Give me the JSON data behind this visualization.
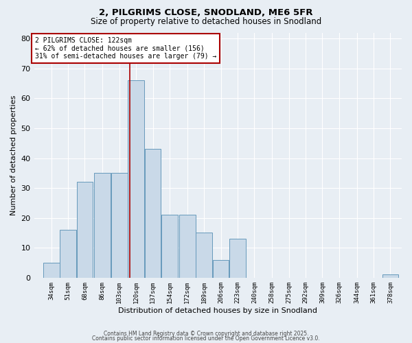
{
  "title1": "2, PILGRIMS CLOSE, SNODLAND, ME6 5FR",
  "title2": "Size of property relative to detached houses in Snodland",
  "xlabel": "Distribution of detached houses by size in Snodland",
  "ylabel": "Number of detached properties",
  "bin_labels": [
    "34sqm",
    "51sqm",
    "68sqm",
    "86sqm",
    "103sqm",
    "120sqm",
    "137sqm",
    "154sqm",
    "172sqm",
    "189sqm",
    "206sqm",
    "223sqm",
    "240sqm",
    "258sqm",
    "275sqm",
    "292sqm",
    "309sqm",
    "326sqm",
    "344sqm",
    "361sqm",
    "378sqm"
  ],
  "bin_left_edges": [
    34,
    51,
    68,
    86,
    103,
    120,
    137,
    154,
    172,
    189,
    206,
    223,
    240,
    258,
    275,
    292,
    309,
    326,
    344,
    361,
    378
  ],
  "bin_width": 17,
  "bar_heights": [
    5,
    16,
    32,
    35,
    35,
    66,
    43,
    21,
    21,
    15,
    6,
    13,
    0,
    0,
    0,
    0,
    0,
    0,
    0,
    0,
    1
  ],
  "bar_color": "#c9d9e8",
  "bar_edge_color": "#6699bb",
  "property_line_x": 122,
  "property_line_color": "#aa0000",
  "annotation_text": "2 PILGRIMS CLOSE: 122sqm\n← 62% of detached houses are smaller (156)\n31% of semi-detached houses are larger (79) →",
  "annotation_box_color": "#ffffff",
  "annotation_box_edge": "#aa0000",
  "ylim": [
    0,
    82
  ],
  "yticks": [
    0,
    10,
    20,
    30,
    40,
    50,
    60,
    70,
    80
  ],
  "xlim_left": 25,
  "xlim_right": 398,
  "background_color": "#e8eef4",
  "grid_color": "#ffffff",
  "footnote1": "Contains HM Land Registry data © Crown copyright and database right 2025.",
  "footnote2": "Contains public sector information licensed under the Open Government Licence v3.0."
}
